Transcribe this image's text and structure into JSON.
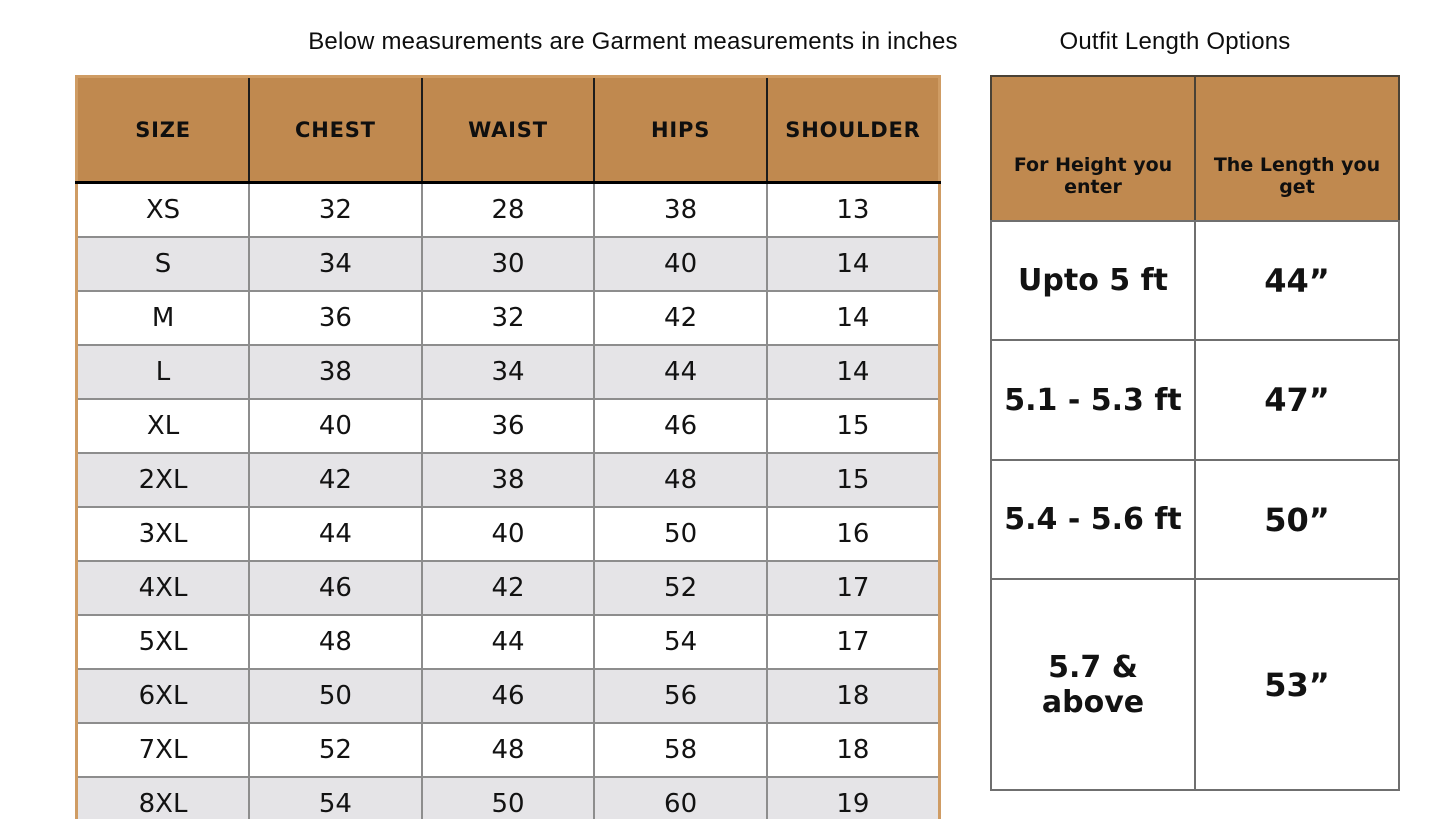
{
  "chart_data": [
    {
      "type": "table",
      "title": "Below measurements are Garment measurements in inches",
      "columns": [
        "SIZE",
        "CHEST",
        "WAIST",
        "HIPS",
        "SHOULDER"
      ],
      "rows": [
        [
          "XS",
          "32",
          "28",
          "38",
          "13"
        ],
        [
          "S",
          "34",
          "30",
          "40",
          "14"
        ],
        [
          "M",
          "36",
          "32",
          "42",
          "14"
        ],
        [
          "L",
          "38",
          "34",
          "44",
          "14"
        ],
        [
          "XL",
          "40",
          "36",
          "46",
          "15"
        ],
        [
          "2XL",
          "42",
          "38",
          "48",
          "15"
        ],
        [
          "3XL",
          "44",
          "40",
          "50",
          "16"
        ],
        [
          "4XL",
          "46",
          "42",
          "52",
          "17"
        ],
        [
          "5XL",
          "48",
          "44",
          "54",
          "17"
        ],
        [
          "6XL",
          "50",
          "46",
          "56",
          "18"
        ],
        [
          "7XL",
          "52",
          "48",
          "58",
          "18"
        ],
        [
          "8XL",
          "54",
          "50",
          "60",
          "19"
        ]
      ],
      "layout_hints": {
        "row_striping": "alternate white / light gray",
        "header_style": "tan background, black bold text"
      }
    },
    {
      "type": "table",
      "title": "Outfit Length Options",
      "columns": [
        "For Height you enter",
        "The Length you get"
      ],
      "rows": [
        [
          "Upto 5 ft",
          "44”"
        ],
        [
          "5.1 - 5.3 ft",
          "47”"
        ],
        [
          "5.4 - 5.6 ft",
          "50”"
        ],
        [
          "5.7 & above",
          "53”"
        ]
      ],
      "layout_hints": {
        "row_striping": "none, all white",
        "header_style": "tan background, black bold text"
      }
    }
  ],
  "colors": {
    "header_bg": "#c0894f",
    "row_alt_bg": "#e5e4e7",
    "garment_outer_border": "#cf9c64",
    "grid_gray": "#8d8d8d",
    "length_border": "#6f6f6f",
    "text": "#121212",
    "background": "#ffffff"
  }
}
